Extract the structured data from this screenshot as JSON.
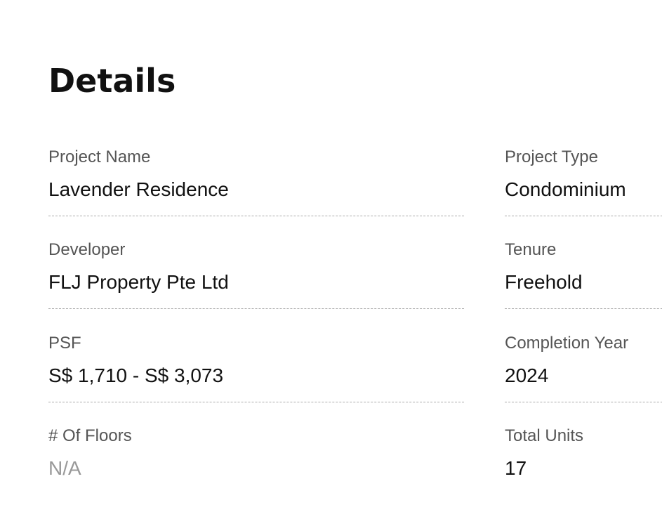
{
  "title": "Details",
  "fields": [
    {
      "label": "Project Name",
      "value": "Lavender Residence"
    },
    {
      "label": "Project Type",
      "value": "Condominium"
    },
    {
      "label": "Developer",
      "value": "FLJ Property Pte Ltd"
    },
    {
      "label": "Tenure",
      "value": "Freehold"
    },
    {
      "label": "PSF",
      "value": "S$ 1,710 - S$ 3,073"
    },
    {
      "label": "Completion Year",
      "value": "2024"
    },
    {
      "label": "# Of Floors",
      "value": "N/A"
    },
    {
      "label": "Total Units",
      "value": "17"
    }
  ]
}
